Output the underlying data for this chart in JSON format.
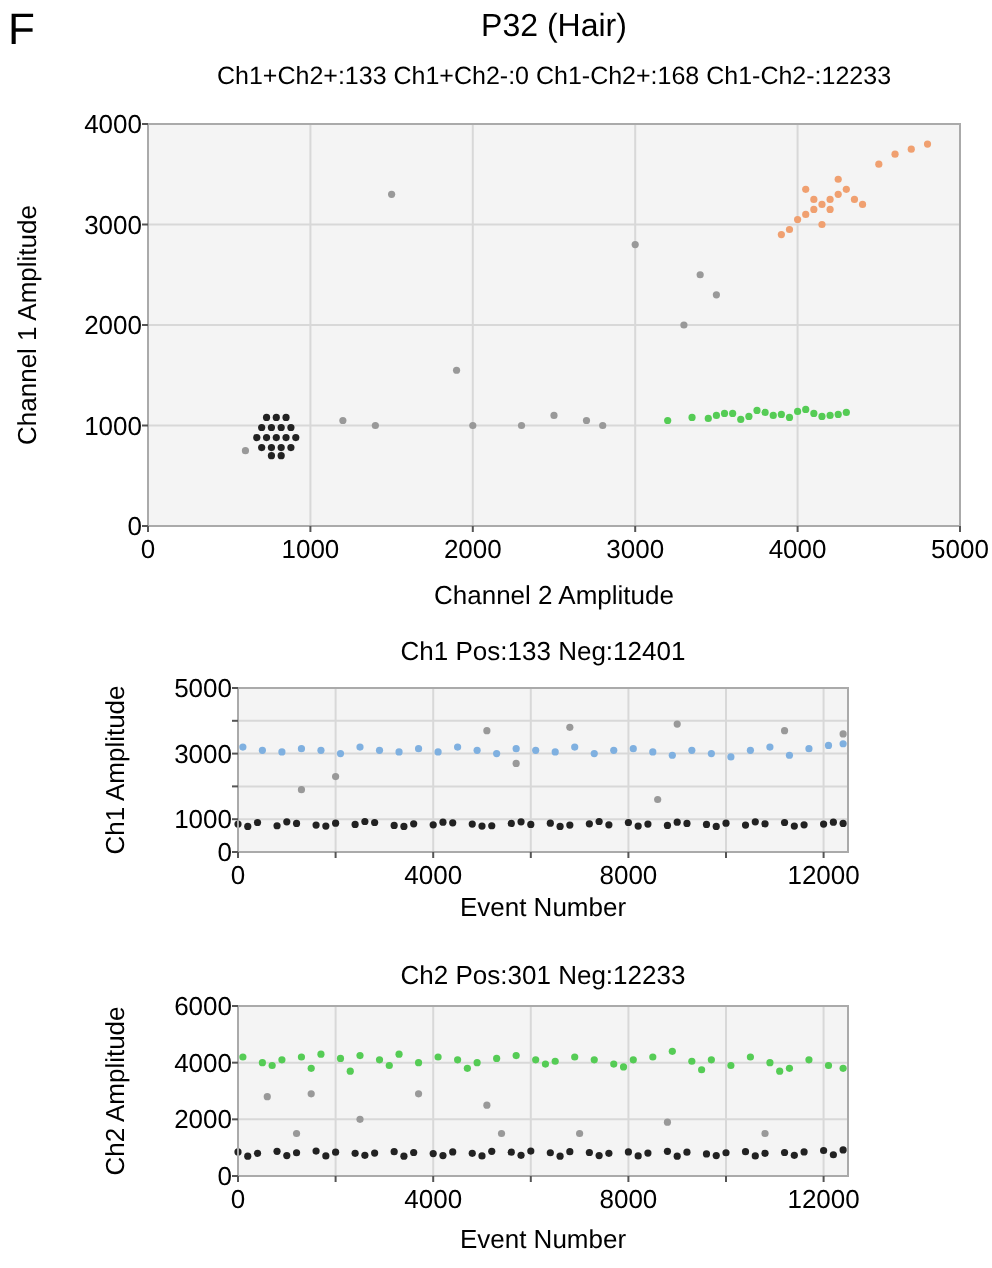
{
  "chart_data": [
    {
      "type": "scatter",
      "title": "P32 (Hair)",
      "subtitle": "Ch1+Ch2+:133 Ch1+Ch2-:0 Ch1-Ch2+:168 Ch1-Ch2-:12233",
      "xlabel": "Channel 2 Amplitude",
      "ylabel": "Channel 1 Amplitude",
      "annotations": [
        "F"
      ],
      "xlim": [
        0,
        5000
      ],
      "ylim": [
        0,
        4000
      ],
      "xticks": [
        0,
        1000,
        2000,
        3000,
        4000,
        5000
      ],
      "yticks": [
        0,
        1000,
        2000,
        3000,
        4000
      ],
      "grid": true,
      "marker": "circle",
      "series": [
        {
          "color": "#222222",
          "x": [
            700,
            760,
            820,
            880,
            670,
            730,
            790,
            850,
            910,
            700,
            760,
            820,
            880,
            730,
            790,
            850,
            760,
            820
          ],
          "values": [
            780,
            780,
            780,
            780,
            880,
            880,
            880,
            880,
            880,
            980,
            980,
            980,
            980,
            1080,
            1080,
            1080,
            700,
            700
          ]
        },
        {
          "color": "#999999",
          "x": [
            600,
            1400,
            1500,
            1900,
            2300,
            2500,
            2700,
            2800,
            3400,
            3500,
            1200,
            2000,
            3000,
            3300
          ],
          "values": [
            750,
            1000,
            3300,
            1550,
            1000,
            1100,
            1050,
            1000,
            2500,
            2300,
            1050,
            1000,
            2800,
            2000
          ]
        },
        {
          "color": "#55cc55",
          "x": [
            3200,
            3350,
            3500,
            3600,
            3700,
            3800,
            3900,
            4000,
            4100,
            4200,
            4300,
            3750,
            3950,
            4150,
            3650,
            3850,
            4050,
            4250,
            3550,
            3450
          ],
          "values": [
            1050,
            1080,
            1100,
            1120,
            1090,
            1130,
            1110,
            1140,
            1120,
            1100,
            1130,
            1150,
            1080,
            1090,
            1060,
            1100,
            1160,
            1110,
            1120,
            1070
          ]
        },
        {
          "color": "#f0a070",
          "x": [
            3950,
            4000,
            4050,
            4100,
            4150,
            4200,
            4250,
            4300,
            4350,
            4400,
            4050,
            4150,
            4250,
            4500,
            4600,
            4700,
            4800,
            4200,
            4100,
            3900
          ],
          "values": [
            2950,
            3050,
            3100,
            3150,
            3200,
            3250,
            3300,
            3350,
            3250,
            3200,
            3350,
            3000,
            3450,
            3600,
            3700,
            3750,
            3800,
            3150,
            3250,
            2900
          ]
        }
      ]
    },
    {
      "type": "scatter",
      "title": "Ch1 Pos:133 Neg:12401",
      "xlabel": "Event Number",
      "ylabel": "Ch1 Amplitude",
      "xlim": [
        0,
        12500
      ],
      "ylim": [
        0,
        5000
      ],
      "xticks": [
        0,
        {
          "value": 2000,
          "label": null
        },
        4000,
        {
          "value": 6000,
          "label": null
        },
        8000,
        {
          "value": 10000,
          "label": null
        },
        12000
      ],
      "yticks": [
        0,
        1000,
        {
          "value": 2000,
          "label": null
        },
        3000,
        {
          "value": 4000,
          "label": null
        },
        5000
      ],
      "grid": true,
      "marker": "circle",
      "series": [
        {
          "color": "#222222",
          "x": [
            0,
            400,
            800,
            1200,
            1600,
            2000,
            2400,
            2800,
            3200,
            3600,
            4000,
            4400,
            4800,
            5200,
            5600,
            6000,
            6400,
            6800,
            7200,
            7600,
            8000,
            8400,
            8800,
            9200,
            9600,
            10000,
            10400,
            10800,
            11200,
            11600,
            12000,
            12400,
            200,
            1000,
            1800,
            2600,
            3400,
            4200,
            5000,
            5800,
            6600,
            7400,
            8200,
            9000,
            9800,
            10600,
            11400,
            12200
          ],
          "values": [
            850,
            900,
            800,
            870,
            820,
            880,
            840,
            900,
            810,
            860,
            830,
            890,
            850,
            800,
            870,
            840,
            880,
            820,
            860,
            830,
            900,
            850,
            810,
            870,
            840,
            880,
            820,
            860,
            900,
            830,
            850,
            870,
            780,
            920,
            790,
            930,
            780,
            910,
            790,
            920,
            780,
            930,
            790,
            910,
            780,
            920,
            790,
            910
          ]
        },
        {
          "color": "#7fb0e0",
          "x": [
            100,
            500,
            900,
            1300,
            1700,
            2100,
            2500,
            2900,
            3300,
            3700,
            4100,
            4500,
            4900,
            5300,
            5700,
            6100,
            6500,
            6900,
            7300,
            7700,
            8100,
            8500,
            8900,
            9300,
            9700,
            10100,
            10500,
            10900,
            11300,
            11700,
            12100,
            12400
          ],
          "values": [
            3200,
            3100,
            3050,
            3150,
            3100,
            3000,
            3200,
            3100,
            3050,
            3150,
            3050,
            3200,
            3100,
            3000,
            3150,
            3100,
            3050,
            3200,
            3000,
            3100,
            3150,
            3050,
            2950,
            3100,
            3000,
            2900,
            3100,
            3200,
            2950,
            3150,
            3250,
            3300
          ]
        },
        {
          "color": "#999999",
          "x": [
            1300,
            2000,
            5100,
            5700,
            6800,
            8600,
            9000,
            11200,
            12400
          ],
          "values": [
            1900,
            2300,
            3700,
            2700,
            3800,
            1600,
            3900,
            3700,
            3600
          ]
        }
      ]
    },
    {
      "type": "scatter",
      "title": "Ch2 Pos:301 Neg:12233",
      "xlabel": "Event Number",
      "ylabel": "Ch2 Amplitude",
      "xlim": [
        0,
        12500
      ],
      "ylim": [
        0,
        6000
      ],
      "xticks": [
        0,
        {
          "value": 2000,
          "label": null
        },
        4000,
        {
          "value": 6000,
          "label": null
        },
        8000,
        {
          "value": 10000,
          "label": null
        },
        12000
      ],
      "yticks": [
        0,
        2000,
        4000,
        6000
      ],
      "grid": true,
      "marker": "circle",
      "series": [
        {
          "color": "#222222",
          "x": [
            0,
            400,
            800,
            1200,
            1600,
            2000,
            2400,
            2800,
            3200,
            3600,
            4000,
            4400,
            4800,
            5200,
            5600,
            6000,
            6400,
            6800,
            7200,
            7600,
            8000,
            8400,
            8800,
            9200,
            9600,
            10000,
            10400,
            10800,
            11200,
            11600,
            12000,
            12400,
            200,
            1000,
            1800,
            2600,
            3400,
            4200,
            5000,
            5800,
            6600,
            7400,
            8200,
            9000,
            9800,
            10600,
            11400,
            12200
          ],
          "values": [
            850,
            800,
            870,
            820,
            880,
            840,
            800,
            810,
            860,
            830,
            790,
            850,
            800,
            870,
            840,
            880,
            820,
            860,
            830,
            800,
            850,
            810,
            870,
            840,
            780,
            820,
            860,
            800,
            830,
            850,
            900,
            920,
            700,
            720,
            710,
            730,
            700,
            720,
            710,
            730,
            700,
            720,
            710,
            700,
            720,
            710,
            730,
            750
          ]
        },
        {
          "color": "#55cc55",
          "x": [
            100,
            500,
            900,
            1300,
            1700,
            2100,
            2500,
            2900,
            3300,
            3700,
            4100,
            4500,
            4900,
            5300,
            5700,
            6100,
            6500,
            6900,
            7300,
            7700,
            8100,
            8500,
            8900,
            9300,
            9700,
            10100,
            10500,
            10900,
            11300,
            11700,
            12100,
            12400,
            700,
            1500,
            2300,
            3100,
            4700,
            6300,
            7900,
            9500,
            11100
          ],
          "values": [
            4200,
            4000,
            4100,
            4200,
            4300,
            4150,
            4250,
            4100,
            4300,
            4000,
            4200,
            4100,
            4000,
            4150,
            4250,
            4100,
            4050,
            4200,
            4100,
            3950,
            4100,
            4200,
            4400,
            4050,
            4100,
            3900,
            4200,
            4000,
            3800,
            4100,
            3900,
            3800,
            3900,
            3800,
            3700,
            3900,
            3800,
            3950,
            3850,
            3750,
            3700
          ]
        },
        {
          "color": "#999999",
          "x": [
            600,
            1200,
            1500,
            2500,
            3700,
            5100,
            5400,
            7000,
            8800,
            10800
          ],
          "values": [
            2800,
            1500,
            2900,
            2000,
            2900,
            2500,
            1500,
            1500,
            1900,
            1500
          ]
        }
      ]
    }
  ]
}
